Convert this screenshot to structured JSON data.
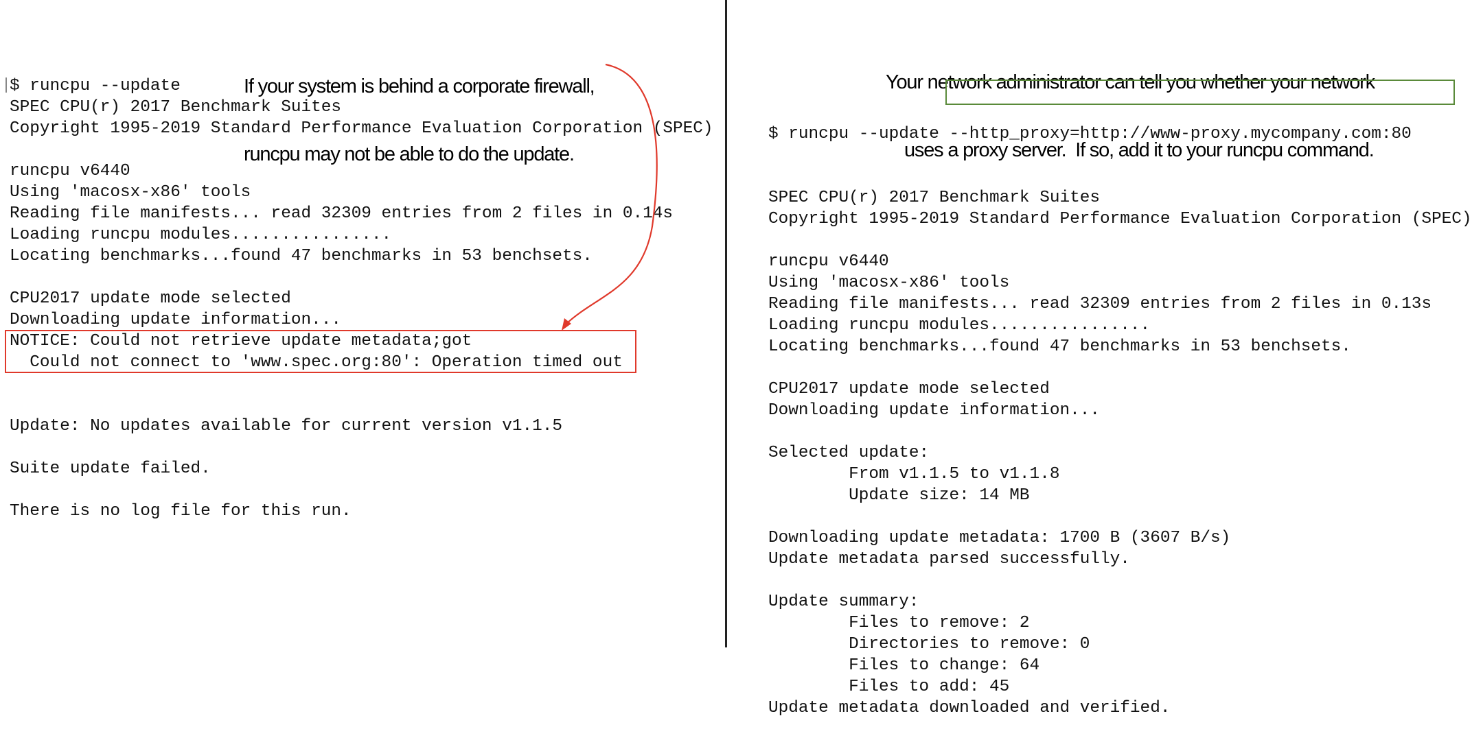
{
  "left": {
    "annotation": [
      "If your system is behind a corporate firewall,",
      "runcpu may not be able to do the update."
    ],
    "terminal_lines": [
      "$ runcpu --update",
      "SPEC CPU(r) 2017 Benchmark Suites",
      "Copyright 1995-2019 Standard Performance Evaluation Corporation (SPEC)",
      "",
      "runcpu v6440",
      "Using 'macosx-x86' tools",
      "Reading file manifests... read 32309 entries from 2 files in 0.14s",
      "Loading runcpu modules................",
      "Locating benchmarks...found 47 benchmarks in 53 benchsets.",
      "",
      "CPU2017 update mode selected",
      "Downloading update information...",
      "NOTICE: Could not retrieve update metadata;got",
      "  Could not connect to 'www.spec.org:80': Operation timed out",
      "",
      "",
      "Update: No updates available for current version v1.1.5",
      "",
      "Suite update failed.",
      "",
      "There is no log file for this run."
    ],
    "highlight_color": "#e0392b"
  },
  "right": {
    "annotation": [
      "Your network administrator can tell you whether your network",
      "uses a proxy server.  If so, add it to your runcpu command."
    ],
    "command_prefix": "$ runcpu --update ",
    "command_proxy": "--http_proxy=http://www-proxy.mycompany.com:80",
    "terminal_lines": [
      "SPEC CPU(r) 2017 Benchmark Suites",
      "Copyright 1995-2019 Standard Performance Evaluation Corporation (SPEC)",
      "",
      "runcpu v6440",
      "Using 'macosx-x86' tools",
      "Reading file manifests... read 32309 entries from 2 files in 0.13s",
      "Loading runcpu modules................",
      "Locating benchmarks...found 47 benchmarks in 53 benchsets.",
      "",
      "CPU2017 update mode selected",
      "Downloading update information...",
      "",
      "Selected update:",
      "        From v1.1.5 to v1.1.8",
      "        Update size: 14 MB",
      "",
      "Downloading update metadata: 1700 B (3607 B/s)",
      "Update metadata parsed successfully.",
      "",
      "Update summary:",
      "        Files to remove: 2",
      "        Directories to remove: 0",
      "        Files to change: 64",
      "        Files to add: 45",
      "Update metadata downloaded and verified."
    ],
    "highlight_color": "#5a8a3a"
  }
}
